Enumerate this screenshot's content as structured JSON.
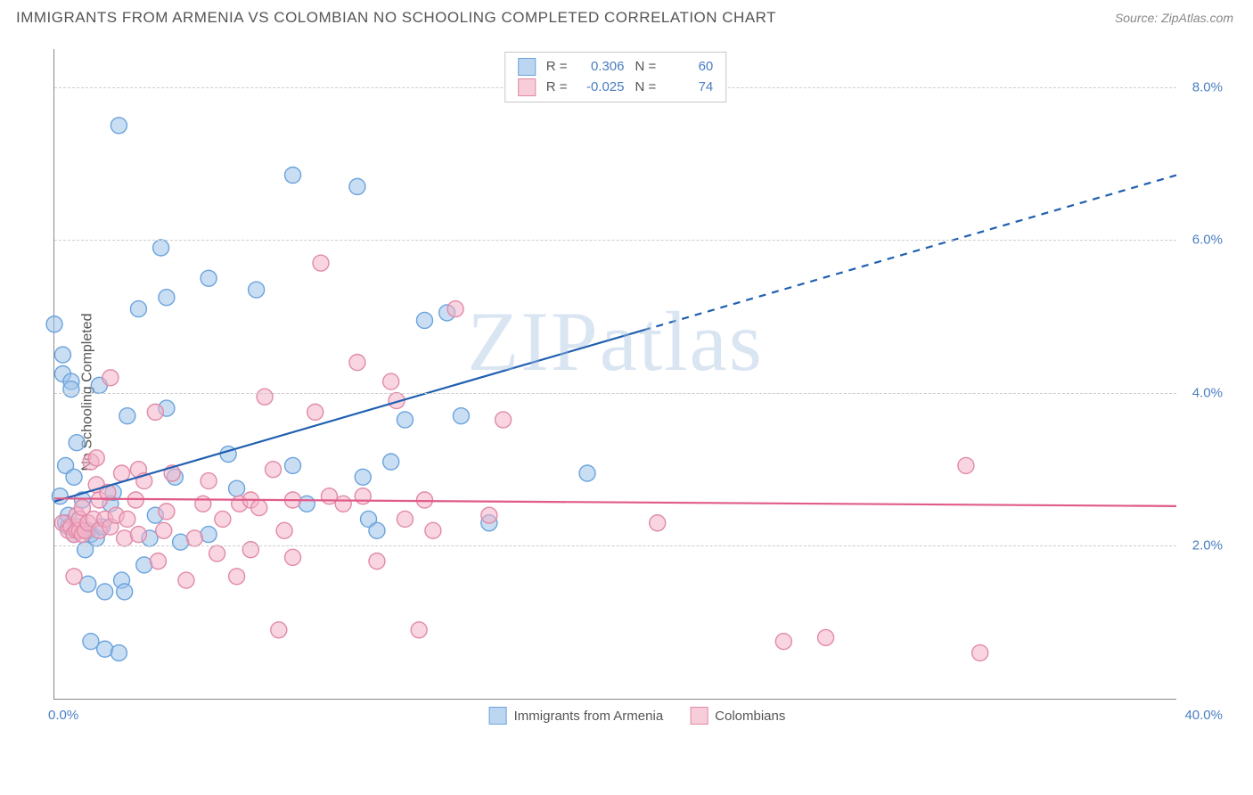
{
  "title": "IMMIGRANTS FROM ARMENIA VS COLOMBIAN NO SCHOOLING COMPLETED CORRELATION CHART",
  "source_label": "Source: ",
  "source_name": "ZipAtlas.com",
  "y_axis_label": "No Schooling Completed",
  "watermark": "ZIPatlas",
  "chart": {
    "type": "scatter",
    "background_color": "#ffffff",
    "grid_color": "#cccccc",
    "axis_color": "#888888",
    "tick_label_color": "#4a7ec0",
    "xlim": [
      0,
      40
    ],
    "ylim": [
      0,
      8.5
    ],
    "x_min_label": "0.0%",
    "x_max_label": "40.0%",
    "y_ticks": [
      2.0,
      4.0,
      6.0,
      8.0
    ],
    "y_tick_labels": [
      "2.0%",
      "4.0%",
      "6.0%",
      "8.0%"
    ],
    "marker_radius": 9,
    "marker_stroke_width": 1.4,
    "trend_line_width": 2.2,
    "series": [
      {
        "name": "Immigrants from Armenia",
        "fill": "rgba(157,195,234,0.55)",
        "stroke": "#6aa3dd",
        "swatch_fill": "#bcd6f1",
        "swatch_stroke": "#6aa3dd",
        "trend_color": "#1f5fb0",
        "R": "0.306",
        "N": "60",
        "trend": {
          "x1": 0,
          "y1": 2.58,
          "x2": 40,
          "y2": 6.85,
          "solid_until_x": 21
        },
        "points": [
          [
            0.0,
            4.9
          ],
          [
            0.2,
            2.65
          ],
          [
            0.3,
            4.5
          ],
          [
            0.3,
            4.25
          ],
          [
            0.4,
            2.3
          ],
          [
            0.4,
            3.05
          ],
          [
            0.5,
            2.25
          ],
          [
            0.5,
            2.4
          ],
          [
            0.6,
            4.15
          ],
          [
            0.6,
            4.05
          ],
          [
            0.7,
            2.9
          ],
          [
            0.7,
            2.15
          ],
          [
            0.8,
            2.25
          ],
          [
            0.8,
            3.35
          ],
          [
            1.0,
            2.6
          ],
          [
            1.1,
            1.95
          ],
          [
            1.2,
            1.5
          ],
          [
            1.2,
            2.2
          ],
          [
            1.3,
            2.15
          ],
          [
            1.3,
            0.75
          ],
          [
            1.5,
            2.1
          ],
          [
            1.6,
            4.1
          ],
          [
            1.7,
            2.25
          ],
          [
            1.8,
            1.4
          ],
          [
            1.8,
            0.65
          ],
          [
            2.0,
            2.55
          ],
          [
            2.1,
            2.7
          ],
          [
            2.3,
            7.5
          ],
          [
            2.3,
            0.6
          ],
          [
            2.4,
            1.55
          ],
          [
            2.5,
            1.4
          ],
          [
            2.6,
            3.7
          ],
          [
            3.0,
            5.1
          ],
          [
            3.2,
            1.75
          ],
          [
            3.4,
            2.1
          ],
          [
            3.6,
            2.4
          ],
          [
            3.8,
            5.9
          ],
          [
            4.0,
            5.25
          ],
          [
            4.3,
            2.9
          ],
          [
            4.5,
            2.05
          ],
          [
            5.5,
            2.15
          ],
          [
            5.5,
            5.5
          ],
          [
            6.2,
            3.2
          ],
          [
            6.5,
            2.75
          ],
          [
            7.2,
            5.35
          ],
          [
            8.5,
            6.85
          ],
          [
            8.5,
            3.05
          ],
          [
            9.0,
            2.55
          ],
          [
            10.8,
            6.7
          ],
          [
            11.0,
            2.9
          ],
          [
            11.2,
            2.35
          ],
          [
            12.0,
            3.1
          ],
          [
            12.5,
            3.65
          ],
          [
            13.2,
            4.95
          ],
          [
            14.0,
            5.05
          ],
          [
            14.5,
            3.7
          ],
          [
            15.5,
            2.3
          ],
          [
            19.0,
            2.95
          ],
          [
            11.5,
            2.2
          ],
          [
            4.0,
            3.8
          ]
        ]
      },
      {
        "name": "Colombians",
        "fill": "rgba(244,179,200,0.55)",
        "stroke": "#e18aa6",
        "swatch_fill": "#f7cdd9",
        "swatch_stroke": "#e18aa6",
        "trend_color": "#e05a8a",
        "R": "-0.025",
        "N": "74",
        "trend": {
          "x1": 0,
          "y1": 2.62,
          "x2": 40,
          "y2": 2.52,
          "solid_until_x": 40
        },
        "points": [
          [
            0.3,
            2.3
          ],
          [
            0.5,
            2.2
          ],
          [
            0.6,
            2.25
          ],
          [
            0.7,
            1.6
          ],
          [
            0.7,
            2.15
          ],
          [
            0.8,
            2.4
          ],
          [
            0.8,
            2.2
          ],
          [
            0.9,
            2.2
          ],
          [
            0.9,
            2.35
          ],
          [
            1.0,
            2.15
          ],
          [
            1.0,
            2.5
          ],
          [
            1.1,
            2.2
          ],
          [
            1.2,
            2.3
          ],
          [
            1.3,
            3.1
          ],
          [
            1.4,
            2.35
          ],
          [
            1.5,
            2.8
          ],
          [
            1.5,
            3.15
          ],
          [
            1.6,
            2.2
          ],
          [
            1.6,
            2.6
          ],
          [
            1.8,
            2.35
          ],
          [
            1.9,
            2.7
          ],
          [
            2.0,
            2.25
          ],
          [
            2.0,
            4.2
          ],
          [
            2.2,
            2.4
          ],
          [
            2.4,
            2.95
          ],
          [
            2.5,
            2.1
          ],
          [
            2.6,
            2.35
          ],
          [
            2.9,
            2.6
          ],
          [
            3.0,
            3.0
          ],
          [
            3.0,
            2.15
          ],
          [
            3.2,
            2.85
          ],
          [
            3.6,
            3.75
          ],
          [
            3.7,
            1.8
          ],
          [
            3.9,
            2.2
          ],
          [
            4.0,
            2.45
          ],
          [
            4.2,
            2.95
          ],
          [
            4.7,
            1.55
          ],
          [
            5.0,
            2.1
          ],
          [
            5.3,
            2.55
          ],
          [
            5.5,
            2.85
          ],
          [
            5.8,
            1.9
          ],
          [
            6.0,
            2.35
          ],
          [
            6.5,
            1.6
          ],
          [
            6.6,
            2.55
          ],
          [
            7.0,
            1.95
          ],
          [
            7.0,
            2.6
          ],
          [
            7.3,
            2.5
          ],
          [
            7.8,
            3.0
          ],
          [
            8.0,
            0.9
          ],
          [
            8.2,
            2.2
          ],
          [
            8.5,
            2.6
          ],
          [
            8.5,
            1.85
          ],
          [
            9.3,
            3.75
          ],
          [
            9.5,
            5.7
          ],
          [
            9.8,
            2.65
          ],
          [
            10.3,
            2.55
          ],
          [
            10.8,
            4.4
          ],
          [
            11.5,
            1.8
          ],
          [
            12.0,
            4.15
          ],
          [
            12.2,
            3.9
          ],
          [
            12.5,
            2.35
          ],
          [
            13.2,
            2.6
          ],
          [
            13.0,
            0.9
          ],
          [
            13.5,
            2.2
          ],
          [
            14.3,
            5.1
          ],
          [
            15.5,
            2.4
          ],
          [
            16.0,
            3.65
          ],
          [
            21.5,
            2.3
          ],
          [
            26.0,
            0.75
          ],
          [
            27.5,
            0.8
          ],
          [
            32.5,
            3.05
          ],
          [
            33.0,
            0.6
          ],
          [
            7.5,
            3.95
          ],
          [
            11.0,
            2.65
          ]
        ]
      }
    ]
  },
  "legend_labels": {
    "R_label": "R =",
    "N_label": "N ="
  }
}
